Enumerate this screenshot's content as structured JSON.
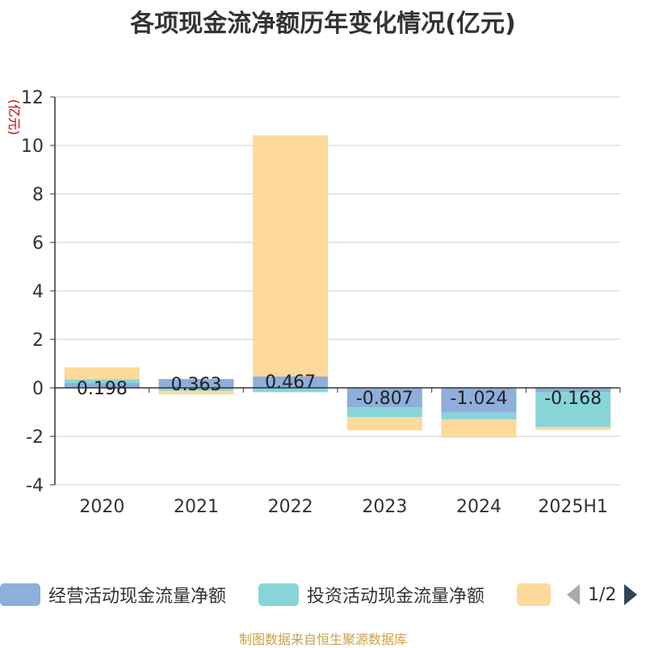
{
  "title": "各项现金流净额历年变化情况(亿元)",
  "y_unit": "(亿元)",
  "legend": {
    "items": [
      {
        "label": "经营活动现金流量净额",
        "color": "#8eaedb"
      },
      {
        "label": "投资活动现金流量净额",
        "color": "#88d5d8"
      },
      {
        "label": "",
        "color": "#fdd99b"
      }
    ],
    "page": "1/2"
  },
  "footer": "制图数据来自恒生聚源数据库",
  "chart_data": {
    "type": "bar",
    "stacked": true,
    "categories": [
      "2020",
      "2021",
      "2022",
      "2023",
      "2024",
      "2025H1"
    ],
    "ylim": [
      -4,
      12
    ],
    "yticks": [
      -4,
      -2,
      0,
      2,
      4,
      6,
      8,
      10,
      12
    ],
    "grid": true,
    "series": [
      {
        "name": "经营活动现金流量净额",
        "color": "#8eaedb",
        "values": [
          0.198,
          0.363,
          0.467,
          -0.807,
          -1.024,
          -0.168
        ]
      },
      {
        "name": "投资活动现金流量净额",
        "color": "#88d5d8",
        "values": [
          0.15,
          -0.12,
          -0.18,
          -0.4,
          -0.28,
          -1.45
        ]
      },
      {
        "name": "",
        "color": "#fdd99b",
        "values": [
          0.5,
          -0.15,
          9.95,
          -0.55,
          -0.75,
          -0.12
        ]
      }
    ],
    "data_labels": [
      "0.198",
      "0.363",
      "0.467",
      "-0.807",
      "-1.024",
      "-0.168"
    ]
  }
}
